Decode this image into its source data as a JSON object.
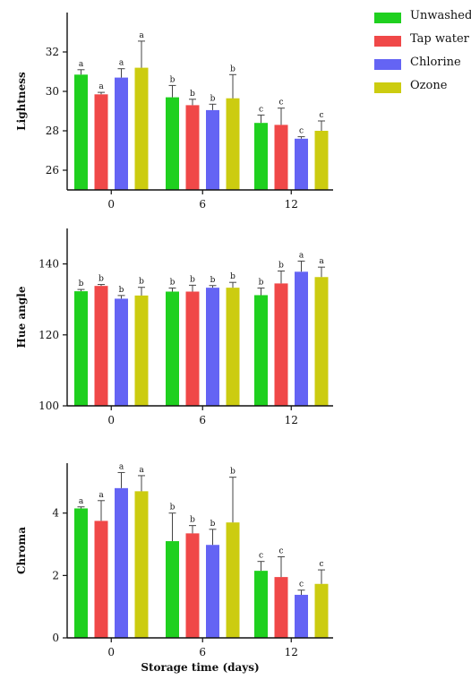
{
  "legend": [
    {
      "name": "Unwashed",
      "color": "#1fd01f"
    },
    {
      "name": "Tap water",
      "color": "#f04848"
    },
    {
      "name": "Chlorine",
      "color": "#6464f4"
    },
    {
      "name": "Ozone",
      "color": "#cccc10"
    }
  ],
  "chart_data": [
    {
      "type": "bar",
      "ylabel": "Lightness",
      "xlabel": "",
      "categories": [
        "0",
        "6",
        "12"
      ],
      "ylim": [
        25,
        34
      ],
      "yticks": [
        26,
        28,
        30,
        32
      ],
      "series": [
        {
          "name": "Unwashed",
          "values": [
            30.85,
            29.7,
            28.4
          ],
          "errors": [
            0.25,
            0.6,
            0.4
          ],
          "labels": [
            "a",
            "b",
            "c"
          ]
        },
        {
          "name": "Tap water",
          "values": [
            29.85,
            29.3,
            28.3
          ],
          "errors": [
            0.1,
            0.3,
            0.85
          ],
          "labels": [
            "a",
            "b",
            "c"
          ]
        },
        {
          "name": "Chlorine",
          "values": [
            30.7,
            29.05,
            27.6
          ],
          "errors": [
            0.45,
            0.3,
            0.1
          ],
          "labels": [
            "a",
            "b",
            "c"
          ]
        },
        {
          "name": "Ozone",
          "values": [
            31.2,
            29.65,
            28.0
          ],
          "errors": [
            1.35,
            1.2,
            0.5
          ],
          "labels": [
            "a",
            "b",
            "c"
          ]
        }
      ]
    },
    {
      "type": "bar",
      "ylabel": "Hue angle",
      "xlabel": "",
      "categories": [
        "0",
        "6",
        "12"
      ],
      "ylim": [
        100,
        150
      ],
      "yticks": [
        100,
        120,
        140
      ],
      "series": [
        {
          "name": "Unwashed",
          "values": [
            132.3,
            132.2,
            131.2
          ],
          "errors": [
            0.5,
            1.0,
            2.0
          ],
          "labels": [
            "b",
            "b",
            "b"
          ]
        },
        {
          "name": "Tap water",
          "values": [
            133.8,
            132.2,
            134.5
          ],
          "errors": [
            0.4,
            1.8,
            3.5
          ],
          "labels": [
            "b",
            "b",
            "b"
          ]
        },
        {
          "name": "Chlorine",
          "values": [
            130.2,
            133.3,
            137.8
          ],
          "errors": [
            0.9,
            0.6,
            3.0
          ],
          "labels": [
            "b",
            "b",
            "a"
          ]
        },
        {
          "name": "Ozone",
          "values": [
            131.1,
            133.3,
            136.3
          ],
          "errors": [
            2.3,
            1.5,
            2.8
          ],
          "labels": [
            "b",
            "b",
            "a"
          ]
        }
      ]
    },
    {
      "type": "bar",
      "ylabel": "Chroma",
      "xlabel": "Storage time (days)",
      "categories": [
        "0",
        "6",
        "12"
      ],
      "ylim": [
        0,
        5.6
      ],
      "yticks": [
        0,
        2,
        4
      ],
      "series": [
        {
          "name": "Unwashed",
          "values": [
            4.15,
            3.1,
            2.15
          ],
          "errors": [
            0.05,
            0.9,
            0.3
          ],
          "labels": [
            "a",
            "b",
            "c"
          ]
        },
        {
          "name": "Tap water",
          "values": [
            3.75,
            3.35,
            1.95
          ],
          "errors": [
            0.65,
            0.25,
            0.65
          ],
          "labels": [
            "a",
            "b",
            "c"
          ]
        },
        {
          "name": "Chlorine",
          "values": [
            4.8,
            2.98,
            1.38
          ],
          "errors": [
            0.5,
            0.5,
            0.15
          ],
          "labels": [
            "a",
            "b",
            "c"
          ]
        },
        {
          "name": "Ozone",
          "values": [
            4.7,
            3.7,
            1.73
          ],
          "errors": [
            0.5,
            1.45,
            0.45
          ],
          "labels": [
            "a",
            "b",
            "c"
          ]
        }
      ]
    }
  ]
}
